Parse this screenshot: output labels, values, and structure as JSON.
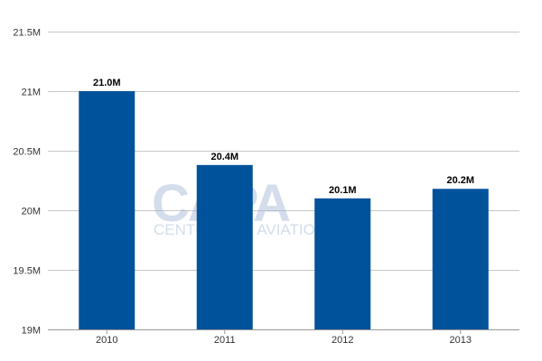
{
  "watermark": {
    "logo_text": "CAPA",
    "tagline": "CENTRE FOR AVIATION",
    "color": "#9fb6d4"
  },
  "chart_data": {
    "type": "bar",
    "categories": [
      "2010",
      "2011",
      "2012",
      "2013"
    ],
    "values": [
      21.0,
      20.38,
      20.1,
      20.18
    ],
    "data_labels": [
      "21.0M",
      "20.4M",
      "20.1M",
      "20.2M"
    ],
    "ylim": [
      19,
      21.5
    ],
    "yticks": [
      19,
      19.5,
      20,
      20.5,
      21,
      21.5
    ],
    "ytick_labels": [
      "19M",
      "19.5M",
      "20M",
      "20.5M",
      "21M",
      "21.5M"
    ],
    "title": "",
    "xlabel": "",
    "ylabel": "",
    "grid": true,
    "legend": "none",
    "bar_color": "#00529b",
    "grid_color": "#c8c8c8",
    "axis_color": "#999999"
  }
}
